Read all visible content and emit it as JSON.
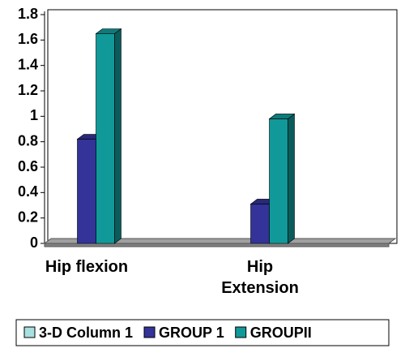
{
  "chart_data": {
    "type": "bar3d",
    "categories": [
      "Hip flexion",
      "Hip Extension"
    ],
    "series": [
      {
        "name": "3-D Column 1",
        "color": "#a8e0e0",
        "values": [
          null,
          null
        ]
      },
      {
        "name": "GROUP 1",
        "color": "#333399",
        "values": [
          0.82,
          0.31
        ]
      },
      {
        "name": "GROUPII",
        "color": "#119999",
        "values": [
          1.65,
          0.98
        ]
      }
    ],
    "ylim": [
      0,
      1.8
    ],
    "yticks": [
      0,
      0.2,
      0.4,
      0.6,
      0.8,
      1,
      1.2,
      1.4,
      1.6,
      1.8
    ]
  }
}
